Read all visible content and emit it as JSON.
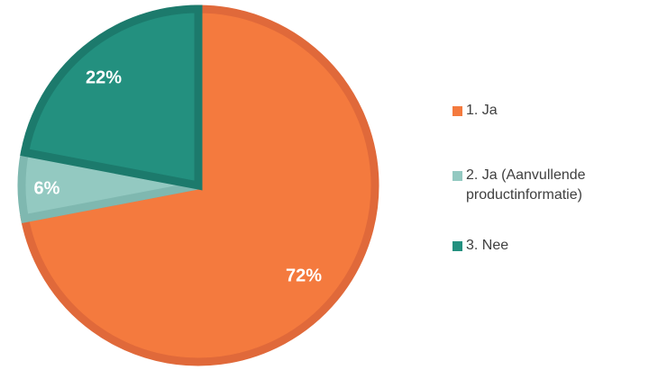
{
  "chart_data": {
    "type": "pie",
    "title": "",
    "categories": [
      "1. Ja",
      "2. Ja (Aanvullende productinformatie)",
      "3. Nee"
    ],
    "values": [
      72,
      6,
      22
    ],
    "labels": [
      "72%",
      "6%",
      "22%"
    ],
    "colors": [
      "#F47A3E",
      "#93C9C1",
      "#23907F"
    ],
    "edge_colors": [
      "#E0693A",
      "#7FB8B0",
      "#1C7A6C"
    ],
    "legend_position": "right",
    "start_angle_deg": 0,
    "direction": "clockwise"
  }
}
